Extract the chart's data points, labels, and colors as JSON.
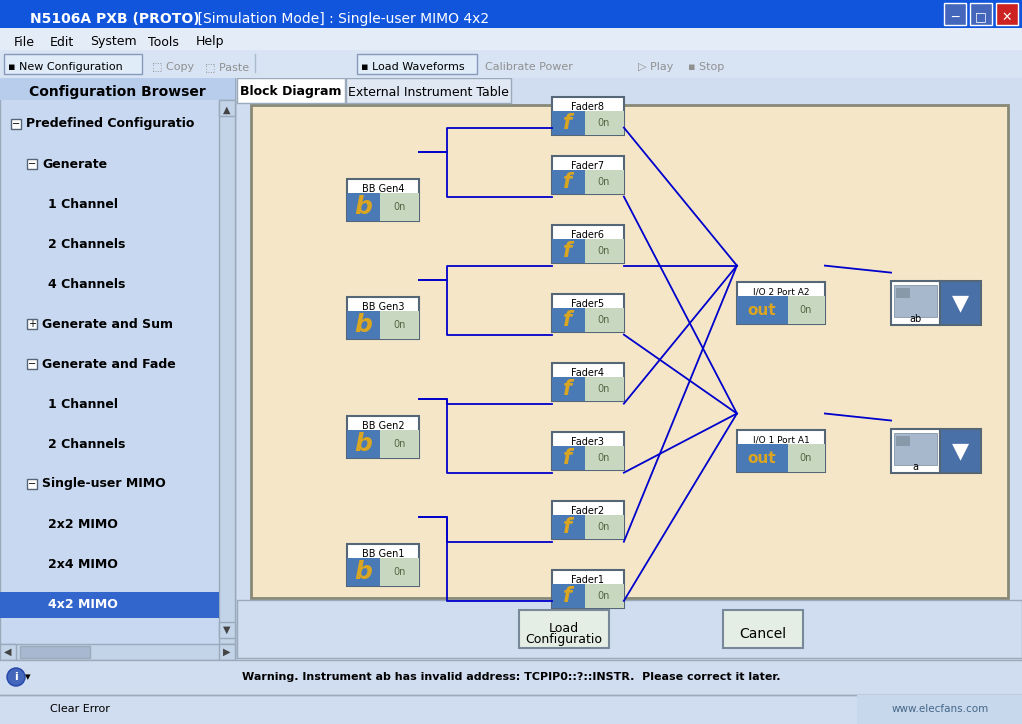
{
  "title_bar": "N5106A PXB (PROTO)    [Simulation Mode] : Single-user MIMO 4x2",
  "title_bar_bg": "#1155DD",
  "title_bar_fg": "#FFFFFF",
  "menu_items": [
    "File",
    "Edit",
    "System",
    "Tools",
    "Help"
  ],
  "tab_items": [
    "Block Diagram",
    "External Instrument Table"
  ],
  "config_browser_title": "Configuration Browser",
  "tree_items": [
    {
      "label": "Predefined Configuratio",
      "level": 0,
      "expanded": true,
      "selected": false
    },
    {
      "label": "Generate",
      "level": 1,
      "expanded": true,
      "selected": false
    },
    {
      "label": "1 Channel",
      "level": 2,
      "expanded": false,
      "selected": false
    },
    {
      "label": "2 Channels",
      "level": 2,
      "expanded": false,
      "selected": false
    },
    {
      "label": "4 Channels",
      "level": 2,
      "expanded": false,
      "selected": false
    },
    {
      "label": "Generate and Sum",
      "level": 1,
      "expanded": false,
      "selected": false
    },
    {
      "label": "Generate and Fade",
      "level": 1,
      "expanded": true,
      "selected": false
    },
    {
      "label": "1 Channel",
      "level": 2,
      "expanded": false,
      "selected": false
    },
    {
      "label": "2 Channels",
      "level": 2,
      "expanded": false,
      "selected": false
    },
    {
      "label": "Single-user MIMO",
      "level": 1,
      "expanded": true,
      "selected": false
    },
    {
      "label": "2x2 MIMO",
      "level": 2,
      "expanded": false,
      "selected": false
    },
    {
      "label": "2x4 MIMO",
      "level": 2,
      "expanded": false,
      "selected": false
    },
    {
      "label": "4x2 MIMO",
      "level": 2,
      "expanded": false,
      "selected": true
    }
  ],
  "bb_gens": [
    "BB Gen1",
    "BB Gen2",
    "BB Gen3",
    "BB Gen4"
  ],
  "faders": [
    "Fader1",
    "Fader2",
    "Fader3",
    "Fader4",
    "Fader5",
    "Fader6",
    "Fader7",
    "Fader8"
  ],
  "io_ports": [
    "I/O 1 Port A1",
    "I/O 2 Port A2"
  ],
  "instruments": [
    "a",
    "ab"
  ],
  "bg_panel": "#F5E6C8",
  "left_panel_bg": "#C8D8F0",
  "panel_bg": "#D0DCF0",
  "block_blue": "#4A7AB5",
  "block_gold": "#DAA520",
  "on_bg": "#C8D8C0",
  "conn_color": "#0000CC",
  "status_bar": "Warning. Instrument ab has invalid address: TCPIP0::?::INSTR.  Please correct it later.",
  "watermark": "www.elecfans.com"
}
